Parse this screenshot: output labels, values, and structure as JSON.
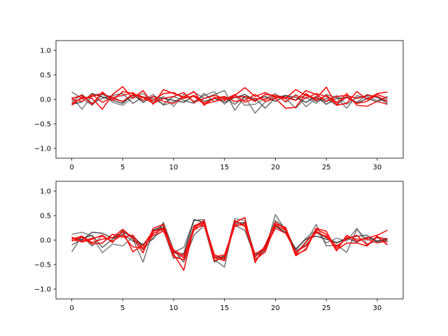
{
  "chart_data": [
    {
      "type": "line",
      "title": "",
      "xlabel": "",
      "ylabel": "",
      "xlim": [
        -1.55,
        32.55
      ],
      "ylim": [
        -1.2,
        1.2
      ],
      "xticks": [
        0,
        5,
        10,
        15,
        20,
        25,
        30
      ],
      "yticks": [
        -1.0,
        -0.5,
        0.0,
        0.5,
        1.0
      ],
      "xtick_labels": [
        "0",
        "5",
        "10",
        "15",
        "20",
        "25",
        "30"
      ],
      "ytick_labels": [
        "−1.0",
        "−0.5",
        "0.0",
        "0.5",
        "1.0"
      ],
      "grid": false,
      "x": [
        0,
        1,
        2,
        3,
        4,
        5,
        6,
        7,
        8,
        9,
        10,
        11,
        12,
        13,
        14,
        15,
        16,
        17,
        18,
        19,
        20,
        21,
        22,
        23,
        24,
        25,
        26,
        27,
        28,
        29,
        30,
        31
      ],
      "series": [
        {
          "color": "#555555",
          "values": [
            0.15,
            0.02,
            -0.12,
            0.1,
            0.05,
            -0.05,
            0.08,
            -0.02,
            0.1,
            -0.12,
            -0.05,
            0.05,
            0.15,
            0.02,
            0.1,
            0.18,
            -0.22,
            0.05,
            -0.28,
            -0.05,
            0.06,
            0.02,
            -0.18,
            0.05,
            -0.08,
            0.1,
            0.04,
            -0.18,
            0.08,
            0.02,
            0.06,
            -0.05
          ]
        },
        {
          "color": "#666666",
          "values": [
            0.05,
            -0.2,
            0.08,
            0.12,
            -0.06,
            -0.12,
            0.04,
            0.12,
            -0.05,
            0.06,
            -0.14,
            0.1,
            -0.04,
            0.08,
            0.16,
            -0.1,
            0.08,
            -0.12,
            -0.1,
            0.02,
            0.12,
            -0.06,
            0.1,
            -0.15,
            0.02,
            -0.05,
            0.08,
            -0.1,
            0.04,
            0.06,
            -0.02,
            0.0
          ]
        },
        {
          "color": "#444444",
          "values": [
            -0.05,
            0.1,
            -0.08,
            0.02,
            0.08,
            0.12,
            -0.08,
            0.05,
            0.02,
            -0.1,
            0.06,
            -0.02,
            -0.08,
            0.12,
            -0.05,
            0.05,
            -0.1,
            0.06,
            0.02,
            -0.18,
            0.04,
            0.08,
            -0.02,
            0.1,
            -0.04,
            0.02,
            -0.12,
            0.06,
            -0.06,
            0.1,
            0.04,
            -0.08
          ]
        },
        {
          "color": "#222222",
          "values": [
            -0.1,
            -0.05,
            0.12,
            0.05,
            -0.02,
            -0.08,
            0.1,
            -0.06,
            0.06,
            0.02,
            -0.02,
            -0.06,
            0.08,
            -0.04,
            0.02,
            -0.06,
            0.04,
            0.1,
            -0.02,
            0.06,
            -0.04,
            0.08,
            0.04,
            -0.06,
            0.06,
            -0.1,
            0.02,
            0.04,
            -0.08,
            0.02,
            -0.05,
            0.06
          ]
        },
        {
          "color": "#ff0000",
          "values": [
            -0.12,
            0.05,
            0.02,
            -0.2,
            0.1,
            0.26,
            0.02,
            0.18,
            -0.1,
            0.2,
            0.12,
            0.05,
            0.16,
            -0.12,
            0.04,
            -0.02,
            0.08,
            0.24,
            0.06,
            0.14,
            0.04,
            0.02,
            0.2,
            0.08,
            0.02,
            0.25,
            -0.12,
            -0.08,
            0.16,
            0.0,
            0.12,
            0.15
          ]
        },
        {
          "color": "#ff0000",
          "values": [
            0.02,
            0.08,
            -0.1,
            0.15,
            -0.02,
            0.16,
            0.12,
            0.05,
            -0.02,
            0.12,
            0.14,
            0.02,
            0.08,
            -0.08,
            0.02,
            0.06,
            -0.04,
            -0.02,
            0.1,
            -0.04,
            0.02,
            -0.18,
            -0.16,
            0.12,
            -0.02,
            0.08,
            -0.06,
            0.04,
            -0.08,
            -0.04,
            0.1,
            0.02
          ]
        },
        {
          "color": "#ee0000",
          "values": [
            -0.08,
            0.02,
            0.06,
            0.12,
            0.02,
            -0.04,
            0.1,
            0.04,
            -0.08,
            0.02,
            0.06,
            0.14,
            -0.06,
            0.02,
            0.08,
            0.02,
            0.04,
            0.06,
            -0.04,
            0.1,
            0.08,
            0.04,
            -0.02,
            0.18,
            0.1,
            -0.04,
            0.06,
            0.08,
            0.02,
            0.08,
            0.06,
            -0.04
          ]
        },
        {
          "color": "#ff1a1a",
          "values": [
            0.0,
            -0.04,
            0.1,
            -0.06,
            0.04,
            0.08,
            0.14,
            -0.02,
            0.06,
            -0.04,
            -0.08,
            0.04,
            0.06,
            -0.1,
            -0.04,
            0.0,
            0.1,
            -0.06,
            0.02,
            0.0,
            0.08,
            -0.04,
            0.08,
            0.02,
            0.12,
            0.06,
            -0.1,
            0.12,
            -0.12,
            -0.14,
            -0.04,
            -0.1
          ]
        }
      ]
    },
    {
      "type": "line",
      "title": "",
      "xlabel": "",
      "ylabel": "",
      "xlim": [
        -1.55,
        32.55
      ],
      "ylim": [
        -1.2,
        1.2
      ],
      "xticks": [
        0,
        5,
        10,
        15,
        20,
        25,
        30
      ],
      "yticks": [
        -1.0,
        -0.5,
        0.0,
        0.5,
        1.0
      ],
      "xtick_labels": [
        "0",
        "5",
        "10",
        "15",
        "20",
        "25",
        "30"
      ],
      "ytick_labels": [
        "−1.0",
        "−0.5",
        "0.0",
        "0.5",
        "1.0"
      ],
      "grid": false,
      "x": [
        0,
        1,
        2,
        3,
        4,
        5,
        6,
        7,
        8,
        9,
        10,
        11,
        12,
        13,
        14,
        15,
        16,
        17,
        18,
        19,
        20,
        21,
        22,
        23,
        24,
        25,
        26,
        27,
        28,
        29,
        30,
        31
      ],
      "series": [
        {
          "color": "#555555",
          "values": [
            -0.24,
            0.08,
            -0.12,
            0.1,
            -0.05,
            0.2,
            0.02,
            -0.45,
            0.2,
            0.3,
            -0.25,
            -0.15,
            0.4,
            0.42,
            -0.4,
            -0.55,
            0.4,
            0.3,
            -0.4,
            -0.2,
            0.52,
            0.2,
            -0.3,
            -0.05,
            0.32,
            -0.12,
            -0.1,
            -0.25,
            0.22,
            0.0,
            0.05,
            -0.05
          ]
        },
        {
          "color": "#666666",
          "values": [
            0.12,
            0.16,
            0.08,
            -0.26,
            -0.08,
            -0.12,
            0.06,
            -0.2,
            0.05,
            0.2,
            -0.38,
            -0.3,
            0.3,
            0.36,
            -0.3,
            -0.4,
            0.44,
            0.4,
            -0.3,
            -0.22,
            0.3,
            0.14,
            -0.2,
            0.04,
            0.2,
            -0.06,
            0.04,
            -0.02,
            0.24,
            -0.08,
            -0.02,
            0.04
          ]
        },
        {
          "color": "#444444",
          "values": [
            -0.1,
            0.02,
            0.1,
            -0.15,
            0.02,
            0.12,
            -0.02,
            -0.08,
            0.02,
            0.36,
            -0.2,
            -0.45,
            0.1,
            0.3,
            -0.45,
            -0.3,
            0.3,
            0.2,
            -0.35,
            -0.14,
            0.4,
            0.24,
            -0.22,
            -0.1,
            0.15,
            0.05,
            -0.05,
            0.02,
            0.08,
            0.1,
            -0.04,
            0.0
          ]
        },
        {
          "color": "#222222",
          "values": [
            0.05,
            0.0,
            0.16,
            0.14,
            0.04,
            0.16,
            0.08,
            -0.12,
            0.2,
            0.26,
            -0.26,
            -0.28,
            0.42,
            0.36,
            -0.36,
            -0.34,
            0.34,
            0.36,
            -0.3,
            -0.14,
            0.28,
            0.16,
            -0.18,
            0.02,
            0.08,
            0.02,
            -0.06,
            0.04,
            -0.04,
            0.06,
            -0.02,
            0.02
          ]
        },
        {
          "color": "#ff0000",
          "values": [
            0.02,
            0.08,
            -0.05,
            0.02,
            0.05,
            0.22,
            0.04,
            -0.26,
            0.24,
            0.32,
            -0.28,
            -0.62,
            0.28,
            0.4,
            -0.36,
            -0.42,
            0.36,
            0.46,
            -0.46,
            -0.1,
            0.36,
            0.22,
            -0.32,
            -0.18,
            0.24,
            0.18,
            -0.2,
            -0.06,
            -0.06,
            -0.12,
            0.08,
            -0.1
          ]
        },
        {
          "color": "#ff0000",
          "values": [
            0.06,
            -0.04,
            0.02,
            0.1,
            -0.04,
            0.18,
            -0.24,
            -0.1,
            0.18,
            0.24,
            -0.34,
            -0.4,
            0.2,
            0.34,
            -0.42,
            -0.36,
            0.28,
            0.34,
            -0.4,
            -0.24,
            0.32,
            0.26,
            -0.3,
            -0.2,
            0.22,
            0.12,
            -0.22,
            0.1,
            -0.02,
            0.04,
            0.1,
            0.2
          ]
        },
        {
          "color": "#ee0000",
          "values": [
            -0.02,
            0.06,
            -0.08,
            -0.06,
            0.12,
            0.06,
            0.1,
            -0.18,
            0.14,
            0.22,
            -0.22,
            -0.36,
            0.26,
            0.36,
            -0.3,
            -0.38,
            0.4,
            0.28,
            -0.34,
            -0.18,
            0.3,
            0.2,
            -0.28,
            -0.04,
            0.18,
            0.06,
            -0.12,
            0.02,
            0.1,
            -0.1,
            0.06,
            0.02
          ]
        },
        {
          "color": "#ff1a1a",
          "values": [
            0.0,
            -0.02,
            0.04,
            0.08,
            -0.02,
            0.1,
            -0.14,
            -0.16,
            0.1,
            0.18,
            -0.2,
            -0.32,
            0.24,
            0.3,
            -0.34,
            -0.3,
            0.32,
            0.3,
            -0.28,
            -0.16,
            0.24,
            0.14,
            -0.24,
            -0.12,
            0.16,
            0.08,
            -0.16,
            0.06,
            0.02,
            0.02,
            -0.06,
            -0.02
          ]
        }
      ]
    }
  ]
}
